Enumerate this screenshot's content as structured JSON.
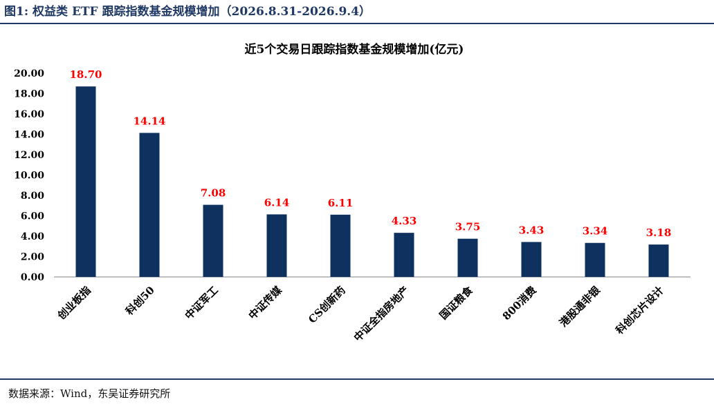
{
  "figure_title": "图1:  权益类 ETF 跟踪指数基金规模增加（2026.8.31-2026.9.4）",
  "source_note": "数据来源：Wind，东吴证券研究所",
  "colors": {
    "bar": "#0e3160",
    "data_label": "#ff0000",
    "rule": "#1f3864",
    "axis": "#7f7f7f"
  },
  "chart_data": {
    "type": "bar",
    "title": "近5个交易日跟踪指数基金规模增加(亿元)",
    "xlabel": "",
    "ylabel": "",
    "categories": [
      "创业板指",
      "科创50",
      "中证军工",
      "中证传媒",
      "CS创新药",
      "中证全指房地产",
      "国证粮食",
      "800消费",
      "港股通非银",
      "科创芯片设计"
    ],
    "values": [
      18.7,
      14.14,
      7.08,
      6.14,
      6.11,
      4.33,
      3.75,
      3.43,
      3.34,
      3.18
    ],
    "data_labels": [
      "18.70",
      "14.14",
      "7.08",
      "6.14",
      "6.11",
      "4.33",
      "3.75",
      "3.43",
      "3.34",
      "3.18"
    ],
    "y_ticks": [
      "0.00",
      "2.00",
      "4.00",
      "6.00",
      "8.00",
      "10.00",
      "12.00",
      "14.00",
      "16.00",
      "18.00",
      "20.00"
    ],
    "ylim": [
      0,
      20
    ],
    "grid": false,
    "legend": "none"
  }
}
